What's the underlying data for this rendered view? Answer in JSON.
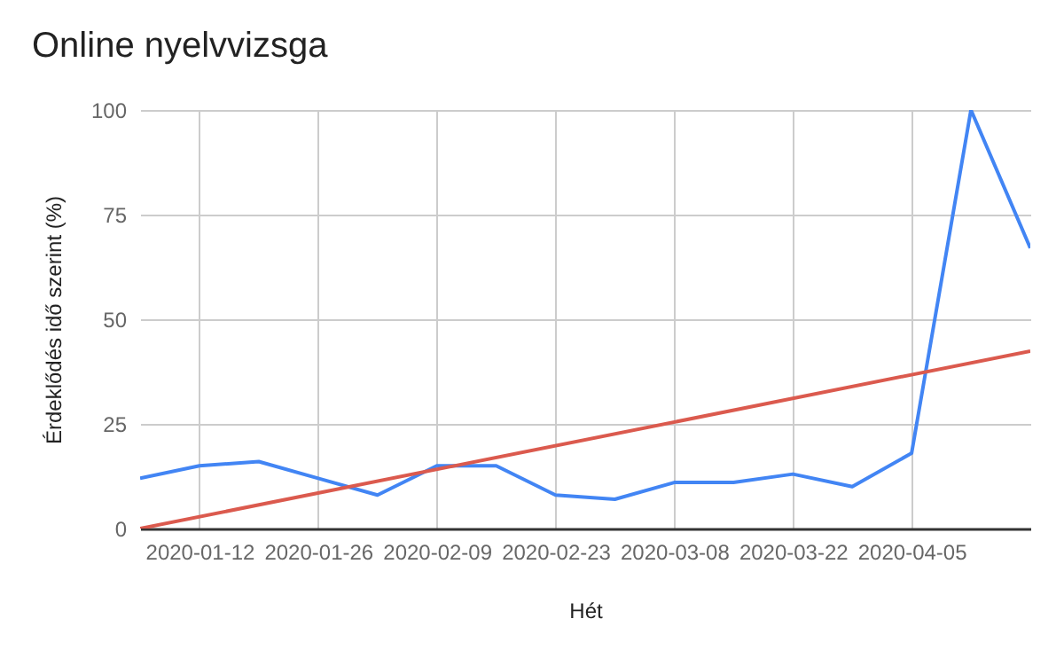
{
  "chart_data": {
    "type": "line",
    "title": "Online nyelvvizsga",
    "xlabel": "Hét",
    "ylabel": "Érdeklődés idő szerint (%)",
    "x": [
      "2020-01-05",
      "2020-01-12",
      "2020-01-19",
      "2020-01-26",
      "2020-02-02",
      "2020-02-09",
      "2020-02-16",
      "2020-02-23",
      "2020-03-01",
      "2020-03-08",
      "2020-03-15",
      "2020-03-22",
      "2020-03-29",
      "2020-04-05",
      "2020-04-12",
      "2020-04-19"
    ],
    "series": [
      {
        "color": "#4285f4",
        "values": [
          12,
          15,
          16,
          12,
          8,
          15,
          15,
          8,
          7,
          11,
          11,
          13,
          10,
          18,
          100,
          67
        ]
      },
      {
        "type": "line",
        "color": "#db5a4e",
        "x": [
          "2020-01-05",
          "2020-04-19"
        ],
        "values": [
          0,
          42.4
        ]
      }
    ],
    "xlim": [
      "2020-01-05",
      "2020-04-19"
    ],
    "xticks": [
      "2020-01-12",
      "2020-01-26",
      "2020-02-09",
      "2020-02-23",
      "2020-03-08",
      "2020-03-22",
      "2020-04-05"
    ],
    "ylim": [
      0,
      100
    ],
    "yticks": [
      0,
      25,
      50,
      75,
      100
    ],
    "grid": true
  }
}
